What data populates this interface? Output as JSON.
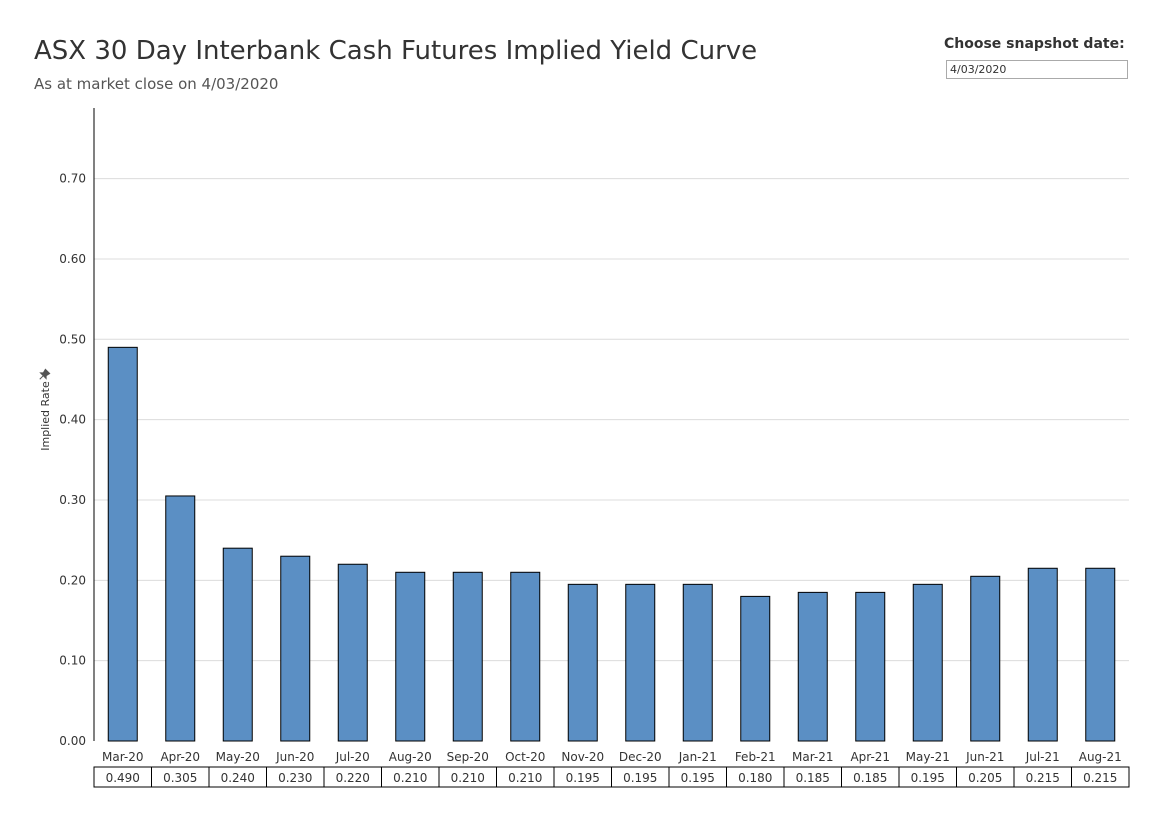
{
  "header": {
    "title": "ASX 30 Day Interbank Cash Futures Implied Yield Curve",
    "subtitle": "As at market close on 4/03/2020"
  },
  "date_picker": {
    "label": "Choose snapshot date:",
    "value": "4/03/2020"
  },
  "pin_icon": "pin-icon",
  "chart_data": {
    "type": "bar",
    "categories": [
      "Mar-20",
      "Apr-20",
      "May-20",
      "Jun-20",
      "Jul-20",
      "Aug-20",
      "Sep-20",
      "Oct-20",
      "Nov-20",
      "Dec-20",
      "Jan-21",
      "Feb-21",
      "Mar-21",
      "Apr-21",
      "May-21",
      "Jun-21",
      "Jul-21",
      "Aug-21"
    ],
    "values": [
      0.49,
      0.305,
      0.24,
      0.23,
      0.22,
      0.21,
      0.21,
      0.21,
      0.195,
      0.195,
      0.195,
      0.18,
      0.185,
      0.185,
      0.195,
      0.205,
      0.215,
      0.215
    ],
    "value_labels": [
      "0.490",
      "0.305",
      "0.240",
      "0.230",
      "0.220",
      "0.210",
      "0.210",
      "0.210",
      "0.195",
      "0.195",
      "0.195",
      "0.180",
      "0.185",
      "0.185",
      "0.195",
      "0.205",
      "0.215",
      "0.215"
    ],
    "ylabel": "Implied Rate",
    "yticks": [
      0.0,
      0.1,
      0.2,
      0.3,
      0.4,
      0.5,
      0.6,
      0.7
    ],
    "ytick_labels": [
      "0.00",
      "0.10",
      "0.20",
      "0.30",
      "0.40",
      "0.50",
      "0.60",
      "0.70"
    ],
    "ylim": [
      0,
      0.7879
    ],
    "grid": true,
    "bar_color": "#5b8fc4"
  }
}
